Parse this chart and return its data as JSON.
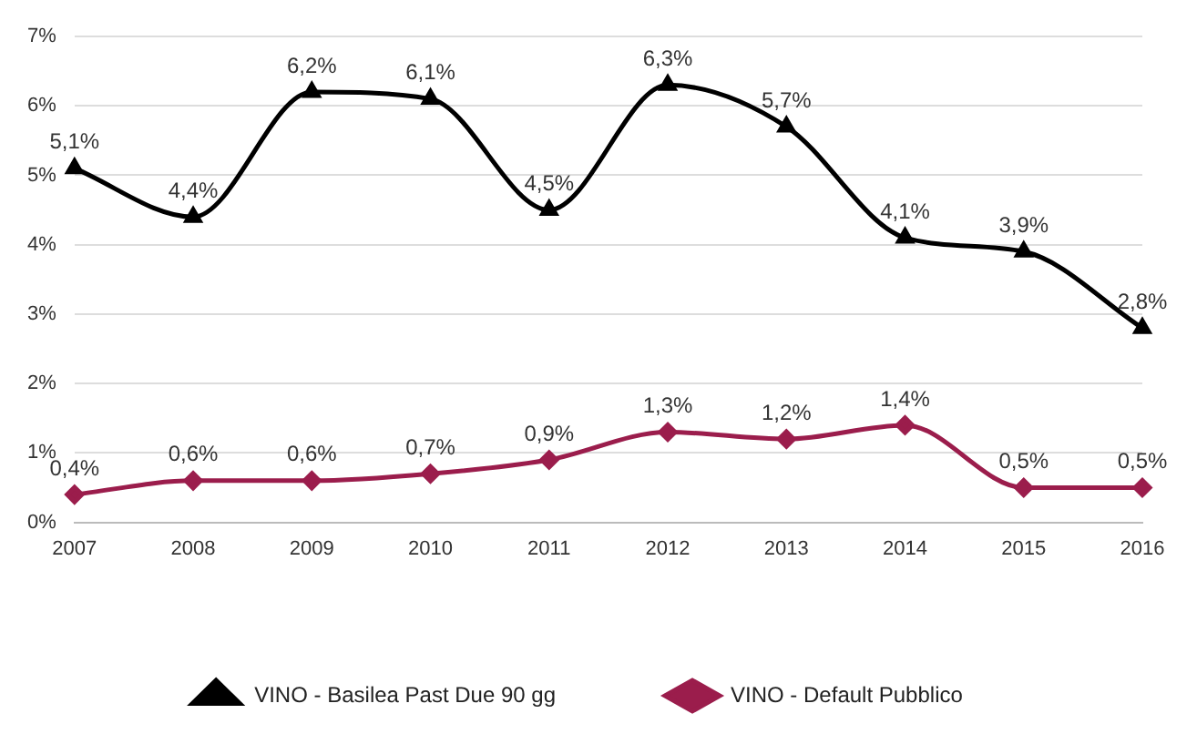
{
  "chart_data": {
    "type": "line",
    "categories": [
      "2007",
      "2008",
      "2009",
      "2010",
      "2011",
      "2012",
      "2013",
      "2014",
      "2015",
      "2016"
    ],
    "series": [
      {
        "name": "VINO - Basilea Past Due 90 gg",
        "color": "#000000",
        "marker": "triangle",
        "values": [
          5.1,
          4.4,
          6.2,
          6.1,
          4.5,
          6.3,
          5.7,
          4.1,
          3.9,
          2.8
        ],
        "value_labels": [
          "5,1%",
          "4,4%",
          "6,2%",
          "6,1%",
          "4,5%",
          "6,3%",
          "5,7%",
          "4,1%",
          "3,9%",
          "2,8%"
        ]
      },
      {
        "name": "VINO - Default Pubblico",
        "color": "#9b1d4c",
        "marker": "diamond",
        "values": [
          0.4,
          0.6,
          0.6,
          0.7,
          0.9,
          1.3,
          1.2,
          1.4,
          0.5,
          0.5
        ],
        "value_labels": [
          "0,4%",
          "0,6%",
          "0,6%",
          "0,7%",
          "0,9%",
          "1,3%",
          "1,2%",
          "1,4%",
          "0,5%",
          "0,5%"
        ]
      }
    ],
    "ylim": [
      0,
      7
    ],
    "yticks": [
      {
        "value": 0,
        "label": "0%"
      },
      {
        "value": 1,
        "label": "1%"
      },
      {
        "value": 2,
        "label": "2%"
      },
      {
        "value": 3,
        "label": "3%"
      },
      {
        "value": 4,
        "label": "4%"
      },
      {
        "value": 5,
        "label": "5%"
      },
      {
        "value": 6,
        "label": "6%"
      },
      {
        "value": 7,
        "label": "7%"
      }
    ],
    "grid": "y",
    "legend": "bottom"
  }
}
